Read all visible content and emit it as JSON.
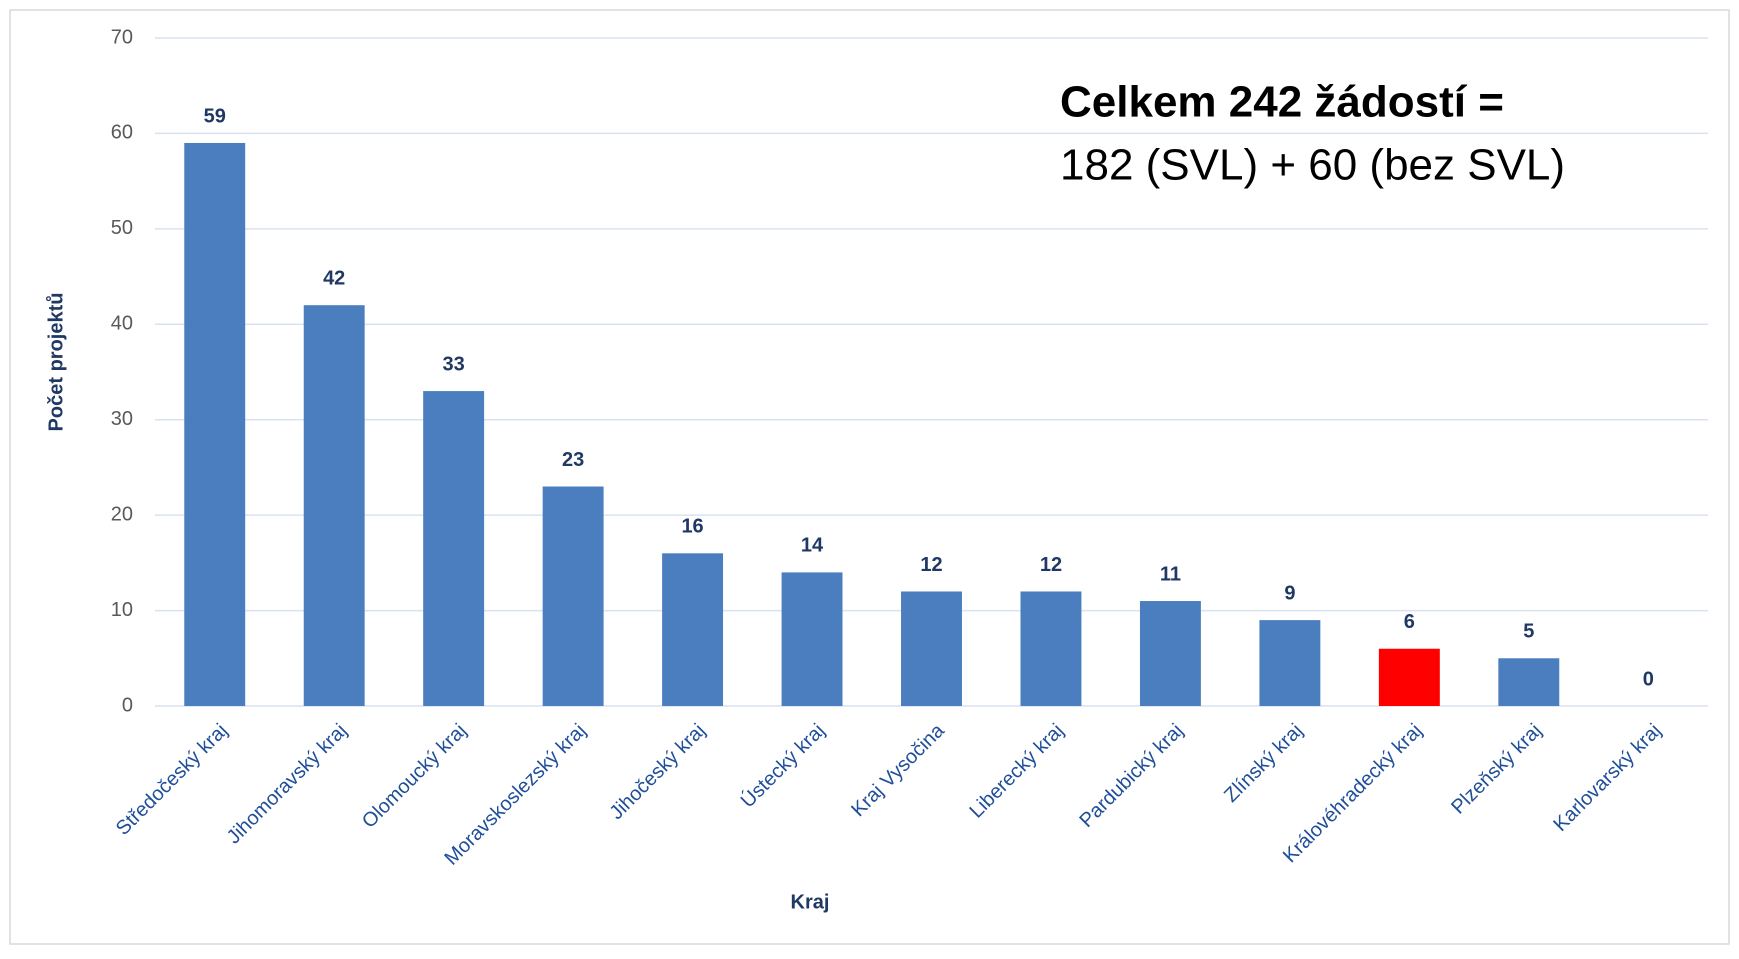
{
  "chart_data": {
    "type": "bar",
    "categories": [
      "Středočeský kraj",
      "Jihomoravský kraj",
      "Olomoucký kraj",
      "Moravskoslezský kraj",
      "Jihočeský kraj",
      "Ústecký kraj",
      "Kraj Vysočina",
      "Liberecký kraj",
      "Pardubický kraj",
      "Zlínský kraj",
      "Královéhradecký kraj",
      "Plzeňský kraj",
      "Karlovarský kraj"
    ],
    "values": [
      59,
      42,
      33,
      23,
      16,
      14,
      12,
      12,
      11,
      9,
      6,
      5,
      0
    ],
    "colors": [
      "#4a7ebf",
      "#4a7ebf",
      "#4a7ebf",
      "#4a7ebf",
      "#4a7ebf",
      "#4a7ebf",
      "#4a7ebf",
      "#4a7ebf",
      "#4a7ebf",
      "#4a7ebf",
      "#ff0000",
      "#4a7ebf",
      "#4a7ebf"
    ],
    "ylim": [
      0,
      70
    ],
    "yticks": [
      0,
      10,
      20,
      30,
      40,
      50,
      60,
      70
    ],
    "grid": true,
    "xlabel": "Kraj",
    "ylabel": "Počet projektů",
    "annotations": [
      "Celkem 242 žádostí  =",
      "182 (SVL) + 60 (bez SVL)"
    ]
  }
}
